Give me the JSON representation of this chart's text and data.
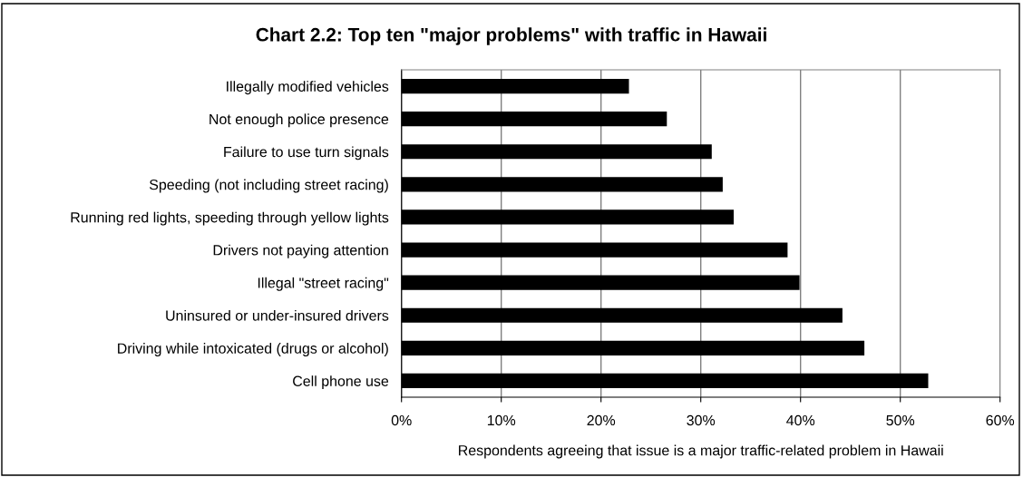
{
  "chart_data": {
    "type": "bar",
    "orientation": "horizontal",
    "title": "Chart 2.2: Top ten \"major problems\" with traffic in Hawaii",
    "xlabel": "Respondents agreeing that issue is a major traffic-related problem in Hawaii",
    "categories": [
      "Illegally modified vehicles",
      "Not enough police presence",
      "Failure to use turn signals",
      "Speeding (not including street racing)",
      "Running red lights, speeding through yellow lights",
      "Drivers not paying attention",
      "Illegal \"street racing\"",
      "Uninsured or under-insured drivers",
      "Driving while intoxicated (drugs or alcohol)",
      "Cell phone use"
    ],
    "values": [
      22.8,
      26.6,
      31.1,
      32.2,
      33.3,
      38.7,
      39.9,
      44.2,
      46.4,
      52.8
    ],
    "color": "#000000",
    "xlim": [
      0,
      60
    ],
    "xticks": [
      {
        "value": 0,
        "label": "0%"
      },
      {
        "value": 10,
        "label": "10%"
      },
      {
        "value": 20,
        "label": "20%"
      },
      {
        "value": 30,
        "label": "30%"
      },
      {
        "value": 40,
        "label": "40%"
      },
      {
        "value": 50,
        "label": "50%"
      },
      {
        "value": 60,
        "label": "60%"
      }
    ],
    "grid": "x",
    "legend": false
  }
}
